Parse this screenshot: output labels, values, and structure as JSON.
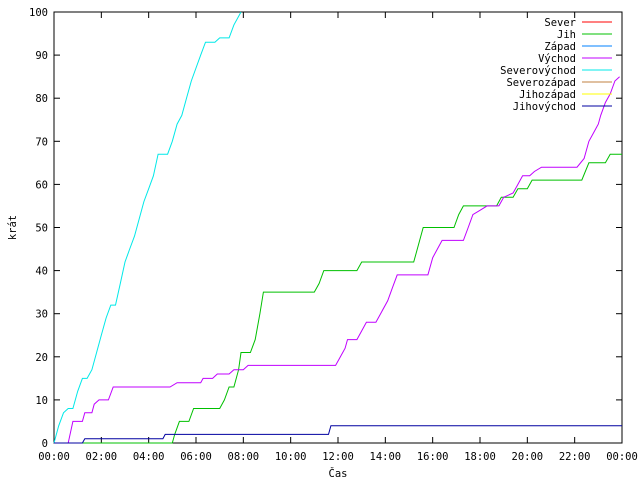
{
  "chart_data": {
    "type": "line",
    "xlabel": "Čas",
    "ylabel": "krát",
    "xlim": [
      0,
      24
    ],
    "ylim": [
      0,
      100
    ],
    "x_ticks": [
      {
        "value": 0,
        "label": "00:00"
      },
      {
        "value": 2,
        "label": "02:00"
      },
      {
        "value": 4,
        "label": "04:00"
      },
      {
        "value": 6,
        "label": "06:00"
      },
      {
        "value": 8,
        "label": "08:00"
      },
      {
        "value": 10,
        "label": "10:00"
      },
      {
        "value": 12,
        "label": "12:00"
      },
      {
        "value": 14,
        "label": "14:00"
      },
      {
        "value": 16,
        "label": "16:00"
      },
      {
        "value": 18,
        "label": "18:00"
      },
      {
        "value": 20,
        "label": "20:00"
      },
      {
        "value": 22,
        "label": "22:00"
      },
      {
        "value": 24,
        "label": "00:00"
      }
    ],
    "y_ticks": [
      0,
      10,
      20,
      30,
      40,
      50,
      60,
      70,
      80,
      90,
      100
    ],
    "grid": false,
    "legend_position": "top-right",
    "series": [
      {
        "name": "Sever",
        "color": "#ff0000",
        "points": []
      },
      {
        "name": "Jih",
        "color": "#00c000",
        "points": [
          [
            0,
            0
          ],
          [
            5.0,
            0
          ],
          [
            5.1,
            2
          ],
          [
            5.3,
            5
          ],
          [
            5.7,
            5
          ],
          [
            5.9,
            8
          ],
          [
            7.0,
            8
          ],
          [
            7.2,
            10
          ],
          [
            7.4,
            13
          ],
          [
            7.6,
            13
          ],
          [
            7.8,
            17
          ],
          [
            7.9,
            21
          ],
          [
            8.3,
            21
          ],
          [
            8.5,
            24
          ],
          [
            8.7,
            30
          ],
          [
            8.85,
            35
          ],
          [
            11.0,
            35
          ],
          [
            11.2,
            37
          ],
          [
            11.4,
            40
          ],
          [
            12.8,
            40
          ],
          [
            13.0,
            42
          ],
          [
            15.2,
            42
          ],
          [
            15.3,
            44
          ],
          [
            15.6,
            50
          ],
          [
            16.9,
            50
          ],
          [
            17.1,
            53
          ],
          [
            17.3,
            55
          ],
          [
            18.7,
            55
          ],
          [
            18.9,
            57
          ],
          [
            19.4,
            57
          ],
          [
            19.6,
            59
          ],
          [
            20.0,
            59
          ],
          [
            20.2,
            61
          ],
          [
            22.3,
            61
          ],
          [
            22.6,
            65
          ],
          [
            23.3,
            65
          ],
          [
            23.5,
            67
          ],
          [
            24,
            67
          ]
        ]
      },
      {
        "name": "Západ",
        "color": "#0080ff",
        "points": []
      },
      {
        "name": "Východ",
        "color": "#c000ff",
        "points": [
          [
            0,
            0
          ],
          [
            0.6,
            0
          ],
          [
            0.8,
            5
          ],
          [
            1.2,
            5
          ],
          [
            1.3,
            7
          ],
          [
            1.6,
            7
          ],
          [
            1.7,
            9
          ],
          [
            1.9,
            10
          ],
          [
            2.3,
            10
          ],
          [
            2.5,
            13
          ],
          [
            4.9,
            13
          ],
          [
            5.2,
            14
          ],
          [
            6.2,
            14
          ],
          [
            6.3,
            15
          ],
          [
            6.7,
            15
          ],
          [
            6.9,
            16
          ],
          [
            7.4,
            16
          ],
          [
            7.6,
            17
          ],
          [
            8.0,
            17
          ],
          [
            8.2,
            18
          ],
          [
            11.9,
            18
          ],
          [
            12.1,
            20
          ],
          [
            12.3,
            22
          ],
          [
            12.4,
            24
          ],
          [
            12.8,
            24
          ],
          [
            13.0,
            26
          ],
          [
            13.2,
            28
          ],
          [
            13.6,
            28
          ],
          [
            13.8,
            30
          ],
          [
            14.1,
            33
          ],
          [
            14.3,
            36
          ],
          [
            14.5,
            39
          ],
          [
            15.8,
            39
          ],
          [
            16.0,
            43
          ],
          [
            16.2,
            45
          ],
          [
            16.4,
            47
          ],
          [
            17.3,
            47
          ],
          [
            17.5,
            50
          ],
          [
            17.7,
            53
          ],
          [
            18.0,
            54
          ],
          [
            18.3,
            55
          ],
          [
            18.8,
            55
          ],
          [
            19.0,
            57
          ],
          [
            19.4,
            58
          ],
          [
            19.6,
            60
          ],
          [
            19.8,
            62
          ],
          [
            20.1,
            62
          ],
          [
            20.3,
            63
          ],
          [
            20.6,
            64
          ],
          [
            22.1,
            64
          ],
          [
            22.4,
            66
          ],
          [
            22.6,
            70
          ],
          [
            22.8,
            72
          ],
          [
            23.0,
            74
          ],
          [
            23.1,
            76
          ],
          [
            23.3,
            79
          ],
          [
            23.5,
            81
          ],
          [
            23.7,
            84
          ],
          [
            23.9,
            85
          ]
        ]
      },
      {
        "name": "Severovýchod",
        "color": "#00e8e8",
        "points": [
          [
            0,
            0
          ],
          [
            0.2,
            4
          ],
          [
            0.4,
            7
          ],
          [
            0.6,
            8
          ],
          [
            0.8,
            8
          ],
          [
            1.0,
            12
          ],
          [
            1.2,
            15
          ],
          [
            1.4,
            15
          ],
          [
            1.6,
            17
          ],
          [
            1.8,
            21
          ],
          [
            2.0,
            25
          ],
          [
            2.2,
            29
          ],
          [
            2.4,
            32
          ],
          [
            2.6,
            32
          ],
          [
            2.8,
            37
          ],
          [
            3.0,
            42
          ],
          [
            3.2,
            45
          ],
          [
            3.4,
            48
          ],
          [
            3.6,
            52
          ],
          [
            3.8,
            56
          ],
          [
            4.0,
            59
          ],
          [
            4.2,
            62
          ],
          [
            4.4,
            67
          ],
          [
            4.6,
            67
          ],
          [
            4.8,
            67
          ],
          [
            5.0,
            70
          ],
          [
            5.2,
            74
          ],
          [
            5.4,
            76
          ],
          [
            5.6,
            80
          ],
          [
            5.8,
            84
          ],
          [
            6.0,
            87
          ],
          [
            6.2,
            90
          ],
          [
            6.4,
            93
          ],
          [
            6.8,
            93
          ],
          [
            7.0,
            94
          ],
          [
            7.4,
            94
          ],
          [
            7.6,
            97
          ],
          [
            7.9,
            100
          ]
        ]
      },
      {
        "name": "Severozápad",
        "color": "#c08040",
        "points": []
      },
      {
        "name": "Jihozápad",
        "color": "#ffff00",
        "points": []
      },
      {
        "name": "Jihovýchod",
        "color": "#0000a0",
        "points": [
          [
            0,
            0
          ],
          [
            1.2,
            0
          ],
          [
            1.3,
            1
          ],
          [
            4.6,
            1
          ],
          [
            4.7,
            2
          ],
          [
            11.6,
            2
          ],
          [
            11.7,
            4
          ],
          [
            24,
            4
          ]
        ]
      }
    ]
  }
}
